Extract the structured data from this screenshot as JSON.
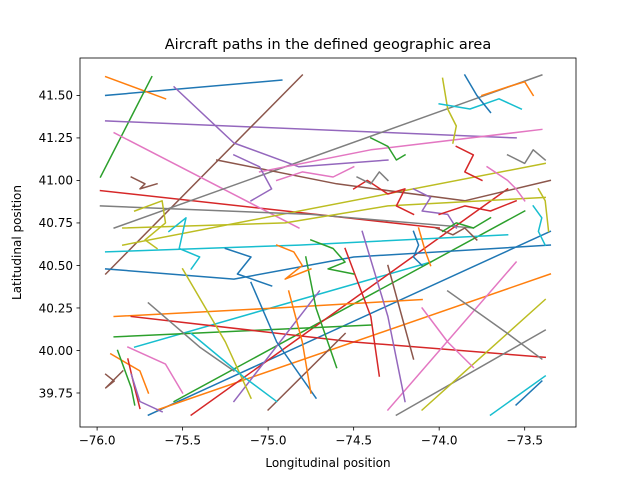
{
  "chart_data": {
    "type": "line",
    "title": "Aircraft paths in the defined geographic area",
    "xlabel": "Longitudinal position",
    "ylabel": "Latitudinal position",
    "xlim": [
      -76.1,
      -73.2
    ],
    "ylim": [
      39.55,
      41.72
    ],
    "xticks": [
      -76.0,
      -75.5,
      -75.0,
      -74.5,
      -74.0,
      -73.5
    ],
    "xtick_labels": [
      "−76.0",
      "−75.5",
      "−75.0",
      "−74.5",
      "−74.0",
      "−73.5"
    ],
    "yticks": [
      39.75,
      40.0,
      40.25,
      40.5,
      40.75,
      41.0,
      41.25,
      41.5
    ],
    "ytick_labels": [
      "39.75",
      "40.00",
      "40.25",
      "40.50",
      "40.75",
      "41.00",
      "41.25",
      "41.50"
    ],
    "grid": false,
    "legend": "none",
    "colors": [
      "#1f77b4",
      "#ff7f0e",
      "#2ca02c",
      "#d62728",
      "#9467bd",
      "#8c564b",
      "#e377c2",
      "#7f7f7f",
      "#bcbd22",
      "#17becf"
    ],
    "series": [
      {
        "x": [
          -75.95,
          -74.92
        ],
        "y": [
          41.5,
          41.59
        ]
      },
      {
        "x": [
          -75.95,
          -75.6
        ],
        "y": [
          41.61,
          41.48
        ]
      },
      {
        "x": [
          -75.98,
          -75.68
        ],
        "y": [
          41.02,
          41.61
        ]
      },
      {
        "x": [
          -75.98,
          -74.0
        ],
        "y": [
          40.94,
          40.72
        ]
      },
      {
        "x": [
          -75.95,
          -73.55
        ],
        "y": [
          41.35,
          41.25
        ]
      },
      {
        "x": [
          -75.95,
          -74.8
        ],
        "y": [
          40.45,
          41.62
        ]
      },
      {
        "x": [
          -75.9,
          -74.82
        ],
        "y": [
          41.28,
          40.72
        ]
      },
      {
        "x": [
          -75.9,
          -73.4
        ],
        "y": [
          40.72,
          41.62
        ]
      },
      {
        "x": [
          -75.85,
          -73.38
        ],
        "y": [
          40.62,
          41.1
        ]
      },
      {
        "x": [
          -75.78,
          -74.05
        ],
        "y": [
          40.02,
          40.52
        ]
      },
      {
        "x": [
          -75.7,
          -73.35
        ],
        "y": [
          39.62,
          40.7
        ]
      },
      {
        "x": [
          -75.65,
          -73.35
        ],
        "y": [
          39.65,
          40.45
        ]
      },
      {
        "x": [
          -75.55,
          -73.5
        ],
        "y": [
          39.7,
          40.82
        ]
      },
      {
        "x": [
          -75.45,
          -73.6
        ],
        "y": [
          39.62,
          40.95
        ]
      },
      {
        "x": [
          -75.55,
          -75.2,
          -74.82,
          -74.3
        ],
        "y": [
          41.55,
          41.22,
          41.08,
          41.12
        ]
      },
      {
        "x": [
          -75.3,
          -74.6,
          -73.85,
          -73.35
        ],
        "y": [
          41.12,
          40.98,
          40.88,
          41.0
        ]
      },
      {
        "x": [
          -75.05,
          -74.4,
          -73.4
        ],
        "y": [
          41.05,
          41.18,
          41.3
        ]
      },
      {
        "x": [
          -75.98,
          -74.75,
          -73.8
        ],
        "y": [
          40.85,
          40.8,
          40.72
        ]
      },
      {
        "x": [
          -75.85,
          -74.9,
          -74.3,
          -73.38
        ],
        "y": [
          40.72,
          40.75,
          40.85,
          40.9
        ]
      },
      {
        "x": [
          -75.95,
          -74.82,
          -73.6
        ],
        "y": [
          40.58,
          40.62,
          40.68
        ]
      },
      {
        "x": [
          -75.95,
          -75.2,
          -74.5,
          -73.35
        ],
        "y": [
          40.48,
          40.42,
          40.55,
          40.62
        ]
      },
      {
        "x": [
          -75.9,
          -74.95,
          -74.1
        ],
        "y": [
          40.2,
          40.25,
          40.3
        ]
      },
      {
        "x": [
          -75.9,
          -74.4
        ],
        "y": [
          40.08,
          40.15
        ]
      },
      {
        "x": [
          -75.8,
          -74.5,
          -73.38
        ],
        "y": [
          40.2,
          40.05,
          39.96
        ]
      },
      {
        "x": [
          -75.2,
          -74.7
        ],
        "y": [
          39.7,
          40.35
        ]
      },
      {
        "x": [
          -75.0,
          -74.55
        ],
        "y": [
          39.65,
          40.1
        ]
      },
      {
        "x": [
          -74.3,
          -73.55
        ],
        "y": [
          39.65,
          40.52
        ]
      },
      {
        "x": [
          -74.25,
          -73.38
        ],
        "y": [
          39.62,
          40.12
        ]
      },
      {
        "x": [
          -74.1,
          -73.38
        ],
        "y": [
          39.65,
          40.3
        ]
      },
      {
        "x": [
          -73.7,
          -73.38
        ],
        "y": [
          39.62,
          39.85
        ]
      },
      {
        "x": [
          -73.55,
          -73.4
        ],
        "y": [
          39.68,
          39.82
        ]
      },
      {
        "x": [
          -75.92,
          -75.75,
          -75.7
        ],
        "y": [
          39.98,
          39.88,
          39.75
        ]
      },
      {
        "x": [
          -75.88,
          -75.8,
          -75.78
        ],
        "y": [
          40.0,
          39.78,
          39.68
        ]
      },
      {
        "x": [
          -75.82,
          -75.78,
          -75.75
        ],
        "y": [
          39.95,
          39.78,
          39.66
        ]
      },
      {
        "x": [
          -75.8,
          -75.75,
          -75.62
        ],
        "y": [
          39.86,
          39.7,
          39.64
        ]
      },
      {
        "x": [
          -75.95,
          -75.9,
          -75.95,
          -75.85
        ],
        "y": [
          39.86,
          39.82,
          39.78,
          39.88
        ]
      },
      {
        "x": [
          -75.82,
          -75.6,
          -75.5
        ],
        "y": [
          40.02,
          39.92,
          39.75
        ]
      },
      {
        "x": [
          -75.7,
          -75.4,
          -75.2
        ],
        "y": [
          40.28,
          40.02,
          39.88
        ]
      },
      {
        "x": [
          -75.5,
          -75.25,
          -75.1
        ],
        "y": [
          40.48,
          40.05,
          39.72
        ]
      },
      {
        "x": [
          -75.45,
          -75.15,
          -74.95
        ],
        "y": [
          40.1,
          39.85,
          39.7
        ]
      },
      {
        "x": [
          -75.1,
          -74.95,
          -74.72
        ],
        "y": [
          40.4,
          40.05,
          39.72
        ]
      },
      {
        "x": [
          -74.88,
          -74.8,
          -74.75
        ],
        "y": [
          40.35,
          40.05,
          39.75
        ]
      },
      {
        "x": [
          -74.78,
          -74.72,
          -74.6
        ],
        "y": [
          40.55,
          40.25,
          39.9
        ]
      },
      {
        "x": [
          -74.55,
          -74.4,
          -74.35
        ],
        "y": [
          40.6,
          40.2,
          39.85
        ]
      },
      {
        "x": [
          -74.45,
          -74.3,
          -74.2
        ],
        "y": [
          40.7,
          40.2,
          39.7
        ]
      },
      {
        "x": [
          -74.3,
          -74.15
        ],
        "y": [
          40.5,
          39.95
        ]
      },
      {
        "x": [
          -74.1,
          -73.95,
          -73.8
        ],
        "y": [
          40.25,
          40.05,
          39.9
        ]
      },
      {
        "x": [
          -73.95,
          -73.6,
          -73.4
        ],
        "y": [
          40.35,
          40.1,
          39.95
        ]
      },
      {
        "x": [
          -75.78,
          -75.62,
          -75.6,
          -75.72,
          -75.65
        ],
        "y": [
          40.82,
          40.88,
          40.75,
          40.65,
          40.6
        ]
      },
      {
        "x": [
          -75.58,
          -75.48,
          -75.52,
          -75.4,
          -75.45
        ],
        "y": [
          40.7,
          40.78,
          40.6,
          40.55,
          40.48
        ]
      },
      {
        "x": [
          -75.25,
          -75.1,
          -75.18,
          -74.98
        ],
        "y": [
          40.6,
          40.55,
          40.45,
          40.38
        ]
      },
      {
        "x": [
          -74.95,
          -74.85,
          -74.8,
          -74.9,
          -74.75
        ],
        "y": [
          40.62,
          40.58,
          40.5,
          40.42,
          40.48
        ]
      },
      {
        "x": [
          -74.75,
          -74.62,
          -74.55,
          -74.65,
          -74.5
        ],
        "y": [
          40.65,
          40.6,
          40.52,
          40.48,
          40.45
        ]
      },
      {
        "x": [
          -74.5,
          -74.42,
          -74.3,
          -74.2,
          -74.25,
          -74.15
        ],
        "y": [
          40.95,
          41.0,
          40.92,
          40.95,
          40.85,
          40.8
        ]
      },
      {
        "x": [
          -74.15,
          -74.05,
          -74.1,
          -73.95,
          -73.9
        ],
        "y": [
          40.95,
          40.9,
          40.82,
          40.8,
          40.72
        ]
      },
      {
        "x": [
          -74.02,
          -73.92,
          -73.85,
          -73.78
        ],
        "y": [
          40.72,
          40.68,
          40.72,
          40.65
        ]
      },
      {
        "x": [
          -73.72,
          -73.6,
          -73.55,
          -73.5
        ],
        "y": [
          41.08,
          41.0,
          40.95,
          40.88
        ]
      },
      {
        "x": [
          -73.6,
          -73.5,
          -73.45,
          -73.38
        ],
        "y": [
          41.15,
          41.1,
          41.18,
          41.12
        ]
      },
      {
        "x": [
          -73.42,
          -73.38,
          -73.36
        ],
        "y": [
          40.95,
          40.88,
          40.7
        ]
      },
      {
        "x": [
          -73.45,
          -73.4,
          -73.42,
          -73.38
        ],
        "y": [
          40.85,
          40.78,
          40.7,
          40.62
        ]
      },
      {
        "x": [
          -74.15,
          -74.12,
          -74.15,
          -74.1
        ],
        "y": [
          40.7,
          40.62,
          40.55,
          40.5
        ]
      },
      {
        "x": [
          -74.12,
          -74.08,
          -74.05
        ],
        "y": [
          40.72,
          40.58,
          40.5
        ]
      },
      {
        "x": [
          -73.98,
          -73.9,
          -73.8,
          -73.7
        ],
        "y": [
          40.7,
          40.75,
          40.72,
          40.78
        ]
      },
      {
        "x": [
          -74.0,
          -73.85,
          -73.7,
          -73.55
        ],
        "y": [
          40.8,
          40.85,
          40.82,
          40.88
        ]
      },
      {
        "x": [
          -75.2,
          -75.05,
          -74.98,
          -75.1
        ],
        "y": [
          41.15,
          41.08,
          40.95,
          40.88
        ]
      },
      {
        "x": [
          -75.8,
          -75.72,
          -75.75,
          -75.65
        ],
        "y": [
          41.02,
          40.98,
          40.95,
          40.98
        ]
      },
      {
        "x": [
          -74.95,
          -74.8,
          -74.62,
          -74.5
        ],
        "y": [
          41.0,
          41.05,
          41.02,
          41.08
        ]
      },
      {
        "x": [
          -74.48,
          -74.4,
          -74.35,
          -74.3
        ],
        "y": [
          41.02,
          40.98,
          41.05,
          41.0
        ]
      },
      {
        "x": [
          -73.98,
          -73.95,
          -73.9,
          -73.92
        ],
        "y": [
          41.6,
          41.42,
          41.32,
          41.22
        ]
      },
      {
        "x": [
          -74.0,
          -73.82,
          -73.65,
          -73.52
        ],
        "y": [
          41.45,
          41.42,
          41.48,
          41.42
        ]
      },
      {
        "x": [
          -73.85,
          -73.78,
          -73.7
        ],
        "y": [
          41.62,
          41.5,
          41.4
        ]
      },
      {
        "x": [
          -73.75,
          -73.6,
          -73.5,
          -73.45
        ],
        "y": [
          41.5,
          41.55,
          41.58,
          41.5
        ]
      },
      {
        "x": [
          -74.4,
          -74.3,
          -74.25,
          -74.2
        ],
        "y": [
          41.25,
          41.2,
          41.12,
          41.15
        ]
      },
      {
        "x": [
          -73.9,
          -73.8,
          -73.85,
          -73.75
        ],
        "y": [
          41.2,
          41.15,
          41.05,
          41.0
        ]
      }
    ]
  }
}
